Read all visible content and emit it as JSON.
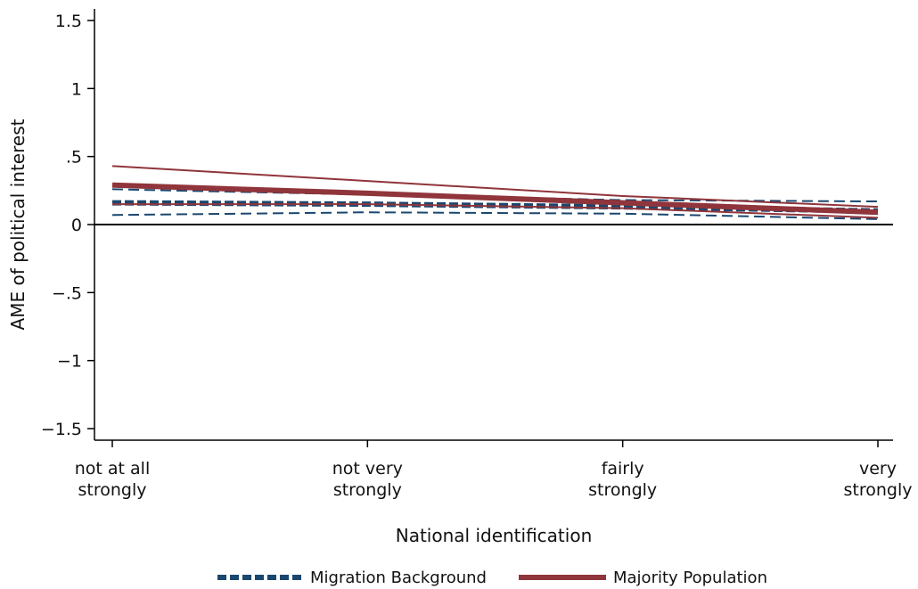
{
  "chart_data": {
    "type": "line",
    "title": "",
    "xlabel": "National identification",
    "ylabel": "AME of political interest",
    "categories": [
      [
        "not at all",
        "strongly"
      ],
      [
        "not very",
        "strongly"
      ],
      [
        "fairly",
        "strongly"
      ],
      [
        "very",
        "strongly"
      ]
    ],
    "ylim": [
      -1.6,
      1.6
    ],
    "yticks": [
      -1.5,
      -1,
      -0.5,
      0,
      0.5,
      1,
      1.5
    ],
    "ytick_labels": [
      "−1.5",
      "−1",
      "−.5",
      "0",
      ".5",
      "1",
      "1.5"
    ],
    "zero_line": true,
    "grid": false,
    "legend_position": "bottom",
    "series": [
      {
        "name": "Migration Background",
        "color": "#1a476f",
        "dash": "dashed",
        "estimate": [
          0.16,
          0.15,
          0.13,
          0.1
        ],
        "ci_lower": [
          0.07,
          0.09,
          0.08,
          0.04
        ],
        "ci_upper": [
          0.26,
          0.22,
          0.18,
          0.17
        ]
      },
      {
        "name": "Majority Population",
        "color": "#90353b",
        "dash": "solid",
        "estimate": [
          0.29,
          0.23,
          0.16,
          0.09
        ],
        "ci_lower": [
          0.15,
          0.15,
          0.12,
          0.05
        ],
        "ci_upper": [
          0.43,
          0.32,
          0.21,
          0.13
        ]
      }
    ]
  }
}
